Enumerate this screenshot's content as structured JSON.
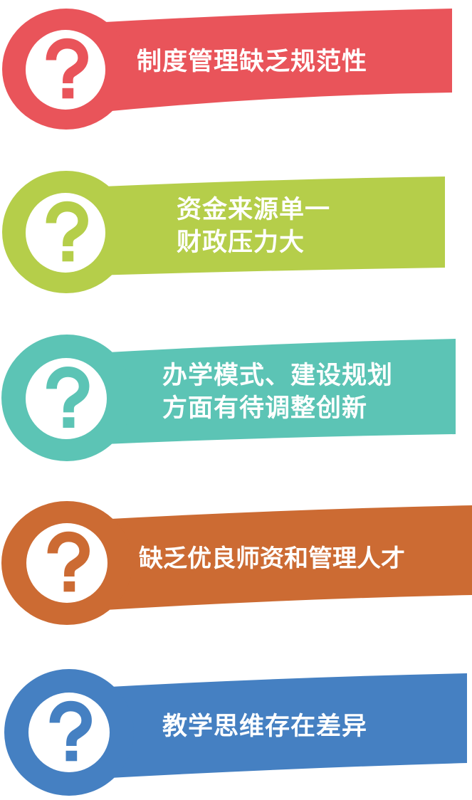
{
  "colors": {
    "red": "#E9545A",
    "green": "#B5CE4A",
    "teal": "#5CC4B5",
    "orange": "#CC6B33",
    "blue": "#4580C2"
  },
  "items": [
    {
      "icon": "question-mark-icon",
      "lines": [
        "制度管理缺乏规范性"
      ]
    },
    {
      "icon": "question-mark-icon",
      "lines": [
        "资金来源单一",
        "财政压力大"
      ]
    },
    {
      "icon": "question-mark-icon",
      "lines": [
        "办学模式、建设规划",
        "方面有待调整创新"
      ]
    },
    {
      "icon": "question-mark-icon",
      "lines": [
        "缺乏优良师资和管理人才"
      ]
    },
    {
      "icon": "question-mark-icon",
      "lines": [
        "教学思维存在差异"
      ]
    }
  ]
}
